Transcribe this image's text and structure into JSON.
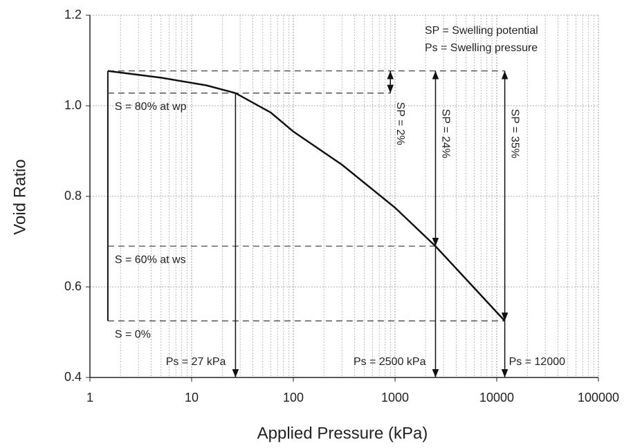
{
  "chart_data": {
    "type": "line",
    "x_label": "Applied Pressure (kPa)",
    "y_label": "Void Ratio",
    "x": [
      1.5,
      5,
      14,
      27,
      60,
      100,
      300,
      1000,
      2500,
      12000
    ],
    "values": [
      1.077,
      1.062,
      1.045,
      1.028,
      0.985,
      0.943,
      0.87,
      0.775,
      0.69,
      0.525
    ],
    "color": "#111111",
    "xscale": "log",
    "xlim": [
      1,
      100000
    ],
    "xticks": [
      1,
      10,
      100,
      1000,
      10000,
      100000
    ],
    "ylim": [
      0.4,
      1.2
    ],
    "yticks": [
      1.2,
      {
        "value": 1.0,
        "label": "1.0"
      },
      0.8,
      0.6,
      0.4
    ],
    "grid": true,
    "legend_texts": [
      "SP = Swelling potential",
      "Ps = Swelling pressure"
    ],
    "saturation_lines": [
      {
        "label": "S = 80% at wp",
        "value": 1.028,
        "x_end": 900
      },
      {
        "label": "S = 60% at ws",
        "value": 0.69,
        "x_end": 2500
      },
      {
        "label": "S = 0%",
        "value": 0.525,
        "x_end": 12000
      }
    ],
    "top_level": {
      "value": 1.077,
      "x_start": 1.5,
      "x_end": 12000
    },
    "swelling_pressures": [
      {
        "value": 27,
        "label": "Ps = 27 kPa",
        "from": 1.028
      },
      {
        "value": 2500,
        "label": "Ps = 2500 kPa",
        "from": 0.69
      },
      {
        "value": 12000,
        "label": "Ps = 12000",
        "from": 0.525
      }
    ],
    "swelling_potentials": [
      {
        "value": 2,
        "label": "SP = 2%",
        "x": 900,
        "to": 1.028
      },
      {
        "value": 24,
        "label": "SP = 24%",
        "x": 2500,
        "to": 0.69
      },
      {
        "value": 35,
        "label": "SP = 35%",
        "x": 12000,
        "to": 0.525
      }
    ]
  }
}
